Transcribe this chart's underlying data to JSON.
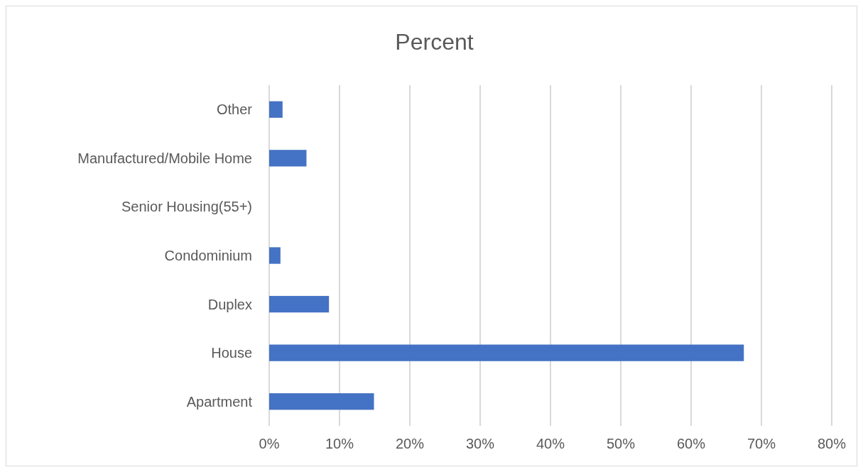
{
  "chart_data": {
    "type": "bar",
    "orientation": "horizontal",
    "title": "Percent",
    "categories": [
      "Other",
      "Manufactured/Mobile Home",
      "Senior Housing(55+)",
      "Condominium",
      "Duplex",
      "House",
      "Apartment"
    ],
    "values": [
      1.9,
      5.3,
      0,
      1.6,
      8.5,
      67.5,
      14.9
    ],
    "color": "#4472c4",
    "xlim": [
      0,
      80
    ],
    "xticks": [
      {
        "value": 0,
        "label": "0%"
      },
      {
        "value": 10,
        "label": "10%"
      },
      {
        "value": 20,
        "label": "20%"
      },
      {
        "value": 30,
        "label": "30%"
      },
      {
        "value": 40,
        "label": "40%"
      },
      {
        "value": 50,
        "label": "50%"
      },
      {
        "value": 60,
        "label": "60%"
      },
      {
        "value": 70,
        "label": "70%"
      },
      {
        "value": 80,
        "label": "80%"
      }
    ],
    "grid": "x"
  }
}
